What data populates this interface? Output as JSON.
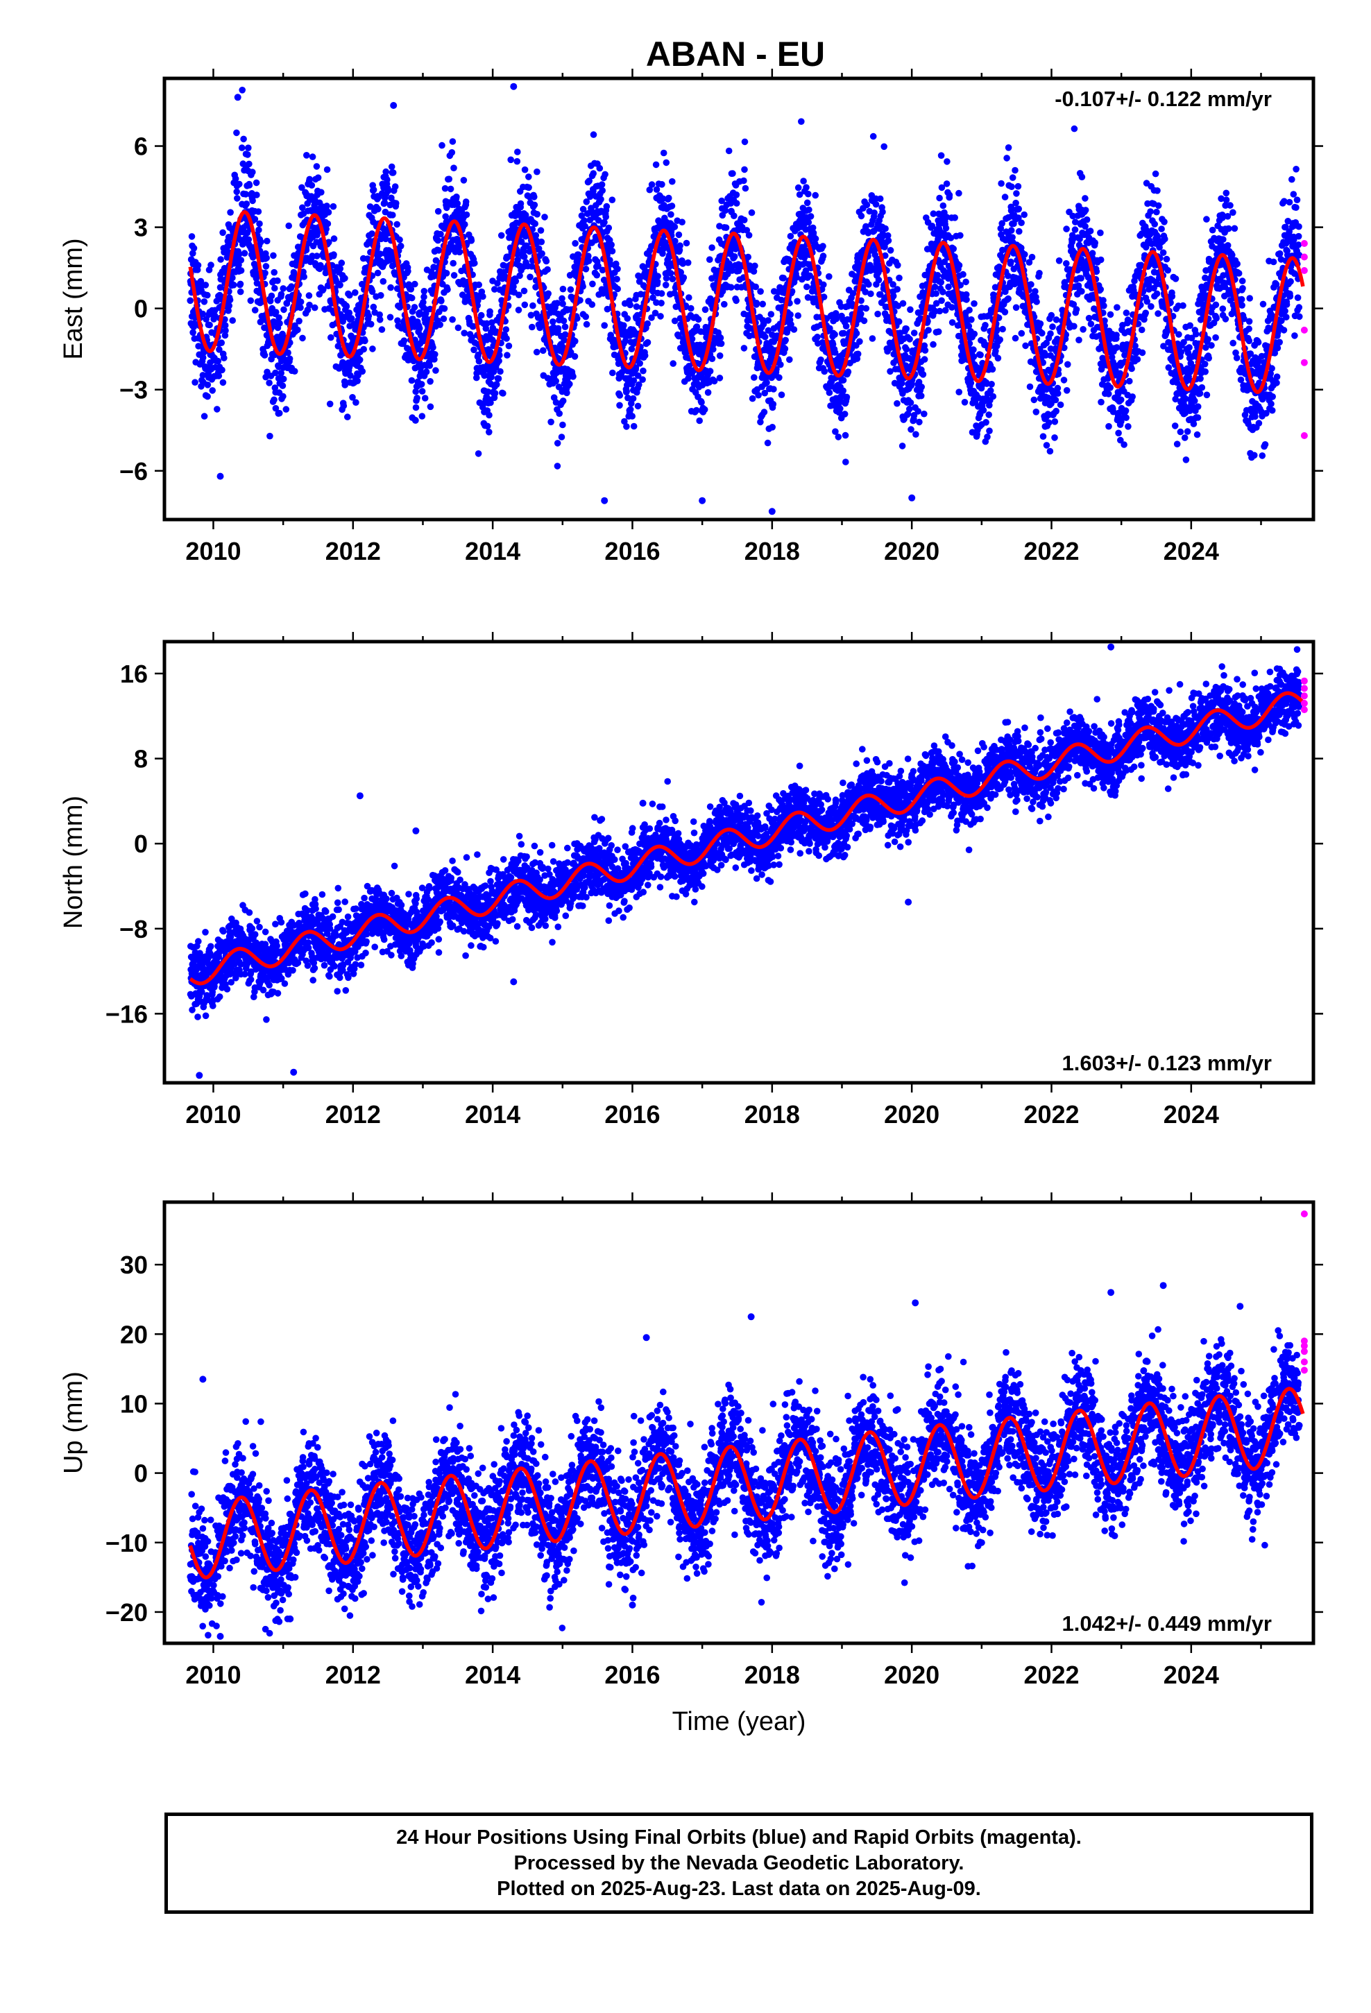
{
  "title": "ABAN - EU",
  "chart_data": [
    {
      "type": "scatter",
      "ylabel": "East (mm)",
      "xlabel": "",
      "rate_text": "-0.107+/- 0.122 mm/yr",
      "xlim": [
        2009.3,
        2025.75
      ],
      "ylim": [
        -7.8,
        8.5
      ],
      "yticks": [
        6,
        3,
        0,
        -3,
        -6
      ],
      "xticks": [
        2010,
        2012,
        2014,
        2016,
        2018,
        2020,
        2022,
        2024
      ],
      "model": {
        "name": "model fit",
        "start": 2009.67,
        "end": 2025.6,
        "trend_mm_per_yr": -0.107,
        "offset_mm": 0.2,
        "annual_amplitude_mm_start": 2.6,
        "annual_amplitude_mm_end": 2.5,
        "annual_phase_yr": 0.2
      },
      "data_noise_mm": 1.2,
      "outliers": [
        [
          2010.35,
          7.8
        ],
        [
          2012.58,
          7.5
        ],
        [
          2014.3,
          8.2
        ],
        [
          2010.1,
          -6.2
        ],
        [
          2015.6,
          -7.1
        ],
        [
          2017.0,
          -7.1
        ],
        [
          2018.0,
          -7.5
        ],
        [
          2020.0,
          -7.0
        ]
      ],
      "rapid_points": [
        [
          2025.62,
          2.4
        ],
        [
          2025.62,
          1.9
        ],
        [
          2025.62,
          1.4
        ],
        [
          2025.62,
          -0.8
        ],
        [
          2025.62,
          -2.0
        ],
        [
          2025.62,
          -4.7
        ]
      ]
    },
    {
      "type": "scatter",
      "ylabel": "North (mm)",
      "xlabel": "",
      "rate_text": "1.603+/- 0.123 mm/yr",
      "xlim": [
        2009.3,
        2025.75
      ],
      "ylim": [
        -22.5,
        19
      ],
      "yticks": [
        16,
        8,
        0,
        -8,
        -16
      ],
      "xticks": [
        2010,
        2012,
        2014,
        2016,
        2018,
        2020,
        2022,
        2024
      ],
      "model": {
        "name": "model fit",
        "start": 2009.67,
        "end": 2025.6,
        "trend_mm_per_yr": 1.603,
        "offset_mm": 0.5,
        "annual_amplitude_mm_start": 1.2,
        "annual_amplitude_mm_end": 1.2,
        "annual_phase_yr": 0.1
      },
      "data_noise_mm": 1.5,
      "outliers": [
        [
          2012.1,
          4.5
        ],
        [
          2012.9,
          1.2
        ],
        [
          2016.15,
          3.8
        ],
        [
          2019.95,
          -5.5
        ],
        [
          2014.3,
          -13.0
        ],
        [
          2011.15,
          -21.5
        ],
        [
          2009.8,
          -21.8
        ],
        [
          2022.85,
          18.5
        ]
      ],
      "rapid_points": [
        [
          2025.62,
          15.3
        ],
        [
          2025.62,
          14.6
        ],
        [
          2025.62,
          13.9
        ],
        [
          2025.62,
          13.2
        ],
        [
          2025.62,
          12.6
        ]
      ]
    },
    {
      "type": "scatter",
      "ylabel": "Up (mm)",
      "xlabel": "Time (year)",
      "rate_text": "1.042+/- 0.449 mm/yr",
      "xlim": [
        2009.3,
        2025.75
      ],
      "ylim": [
        -24.5,
        39
      ],
      "yticks": [
        30,
        20,
        10,
        0,
        -10,
        -20
      ],
      "xticks": [
        2010,
        2012,
        2014,
        2016,
        2018,
        2020,
        2022,
        2024
      ],
      "model": {
        "name": "model fit",
        "start": 2009.67,
        "end": 2025.6,
        "trend_mm_per_yr": 1.042,
        "offset_mm": -1.5,
        "annual_amplitude_mm_start": 5.5,
        "annual_amplitude_mm_end": 5.5,
        "annual_phase_yr": 0.15
      },
      "data_noise_mm": 4.0,
      "outliers": [
        [
          2009.85,
          13.5
        ],
        [
          2016.2,
          19.5
        ],
        [
          2017.7,
          22.5
        ],
        [
          2020.05,
          24.5
        ],
        [
          2022.85,
          26.0
        ],
        [
          2023.6,
          27.0
        ],
        [
          2024.7,
          24.0
        ],
        [
          2010.1,
          -23.5
        ],
        [
          2011.1,
          -21.0
        ],
        [
          2016.0,
          -19.0
        ]
      ],
      "rapid_points": [
        [
          2025.62,
          37.3
        ],
        [
          2025.62,
          19.0
        ],
        [
          2025.62,
          18.3
        ],
        [
          2025.62,
          17.5
        ],
        [
          2025.62,
          16.0
        ],
        [
          2025.62,
          14.8
        ]
      ]
    }
  ],
  "colors": {
    "final_orbits": "#0000ff",
    "rapid_orbits": "#ff00ff",
    "model": "#ff0000",
    "axes": "#000000"
  },
  "footer": {
    "line1": "24 Hour Positions Using Final Orbits (blue) and Rapid Orbits (magenta).",
    "line2": "Processed by the Nevada Geodetic Laboratory.",
    "line3": "Plotted on 2025-Aug-23. Last data on 2025-Aug-09."
  }
}
